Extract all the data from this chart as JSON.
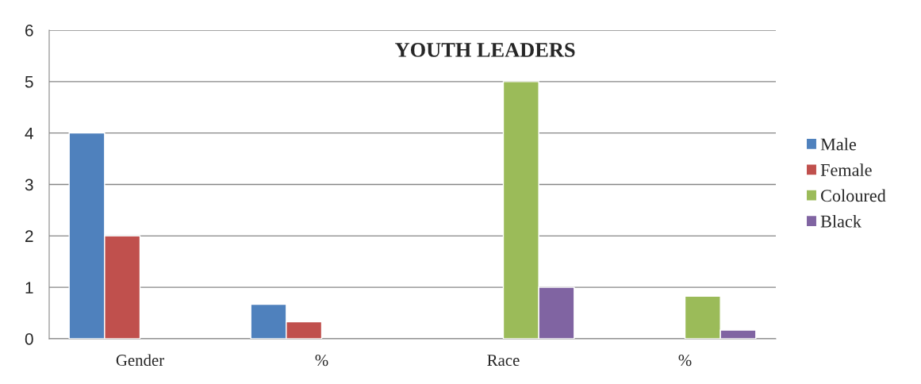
{
  "chart_data": {
    "type": "bar",
    "title": "YOUTH LEADERS",
    "categories": [
      "Gender",
      "%",
      "Race",
      "%"
    ],
    "series": [
      {
        "name": "Male",
        "color": "#4f81bd",
        "values": [
          4,
          0.67,
          null,
          null
        ]
      },
      {
        "name": "Female",
        "color": "#c0504d",
        "values": [
          2,
          0.33,
          null,
          null
        ]
      },
      {
        "name": "Coloured",
        "color": "#9bbb59",
        "values": [
          null,
          null,
          5,
          0.83
        ]
      },
      {
        "name": "Black",
        "color": "#8064a2",
        "values": [
          null,
          null,
          1,
          0.17
        ]
      }
    ],
    "ylim": [
      0,
      6
    ],
    "yticks": [
      0,
      1,
      2,
      3,
      4,
      5,
      6
    ],
    "grid": "y",
    "legend": "right"
  }
}
